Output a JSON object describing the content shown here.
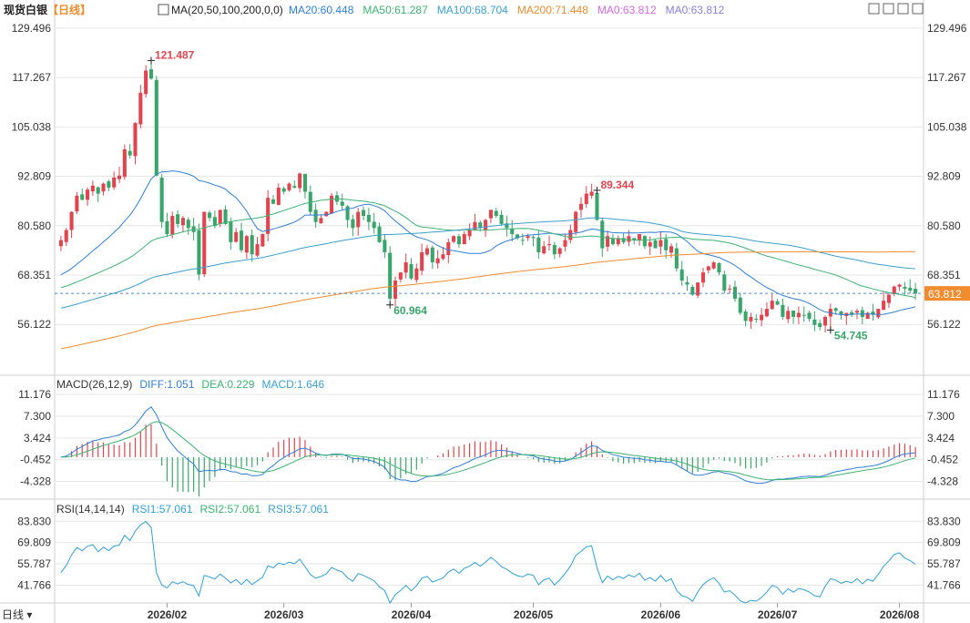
{
  "header": {
    "symbol": "现货白银",
    "period": "【日线】",
    "ma_label": "MA(20,50,100,200,0,0)",
    "ma_values": [
      {
        "text": "MA20:60.448",
        "color": "#2f7fd8"
      },
      {
        "text": "MA50:61.287",
        "color": "#3cb371"
      },
      {
        "text": "MA100:68.704",
        "color": "#3aa0d0"
      },
      {
        "text": "MA200:71.448",
        "color": "#f08c2e"
      },
      {
        "text": "MA0:63.812",
        "color": "#d06ae0"
      },
      {
        "text": "MA0:63.812",
        "color": "#8a7ee0"
      }
    ],
    "tool_icons": [
      "fullscreen-icon",
      "shrink-icon",
      "expand-icon",
      "close-icon"
    ]
  },
  "colors": {
    "up": "#e0454f",
    "down": "#3aa56b",
    "grid": "#e6e6e6",
    "axis_text": "#333333",
    "last_price_bg": "#f08c2e"
  },
  "chart_data": [
    {
      "type": "candlestick",
      "title": "现货白银",
      "y_ticks": [
        129.496,
        117.267,
        105.038,
        92.809,
        80.58,
        68.351,
        56.122
      ],
      "ylim": [
        44.0,
        131.5
      ],
      "x_ticks": [
        "2026/02",
        "2026/03",
        "2026/04",
        "2026/05",
        "2026/06",
        "2026/07",
        "2026/08"
      ],
      "last_price": 63.812,
      "annotations": [
        {
          "text": "121.487",
          "value": 121.487,
          "kind": "high"
        },
        {
          "text": "60.964",
          "value": 60.964,
          "kind": "low"
        },
        {
          "text": "89.344",
          "value": 89.344,
          "kind": "high"
        },
        {
          "text": "54.745",
          "value": 54.745,
          "kind": "low"
        }
      ],
      "candles_close": [
        77.0,
        79.5,
        84.0,
        88.0,
        87.0,
        89.5,
        90.5,
        88.5,
        91.0,
        90.0,
        92.5,
        93.0,
        99.5,
        98.0,
        106.0,
        113.5,
        119.0,
        117.0,
        93.0,
        81.5,
        78.5,
        83.0,
        81.0,
        82.5,
        80.0,
        79.0,
        68.5,
        84.0,
        82.5,
        80.5,
        84.5,
        81.0,
        76.5,
        79.0,
        74.5,
        78.0,
        73.5,
        76.0,
        78.5,
        87.5,
        86.0,
        90.0,
        89.0,
        91.0,
        90.0,
        93.5,
        89.0,
        84.0,
        81.5,
        82.5,
        84.0,
        88.0,
        86.5,
        85.5,
        82.0,
        80.0,
        84.0,
        83.0,
        81.5,
        80.0,
        76.5,
        74.0,
        62.5,
        67.0,
        69.0,
        71.5,
        67.5,
        70.0,
        74.0,
        75.0,
        71.5,
        72.5,
        73.5,
        76.5,
        78.0,
        76.0,
        78.5,
        79.5,
        81.5,
        80.0,
        82.0,
        84.5,
        83.0,
        81.0,
        80.0,
        78.5,
        77.5,
        77.0,
        78.0,
        77.5,
        74.0,
        75.5,
        76.0,
        73.5,
        75.0,
        77.0,
        79.5,
        84.0,
        86.0,
        88.5,
        89.0,
        82.0,
        75.0,
        78.0,
        76.0,
        77.5,
        76.5,
        78.0,
        77.0,
        78.5,
        75.5,
        76.5,
        75.0,
        77.0,
        74.5,
        75.5,
        70.0,
        67.0,
        66.0,
        63.5,
        66.5,
        69.0,
        70.5,
        71.5,
        69.0,
        64.5,
        65.0,
        62.5,
        59.0,
        57.0,
        58.0,
        57.5,
        58.5,
        60.0,
        62.0,
        61.0,
        58.0,
        59.5,
        58.0,
        59.0,
        58.5,
        57.5,
        56.0,
        55.5,
        58.0,
        60.0,
        59.5,
        58.5,
        59.0,
        58.5,
        59.5,
        58.0,
        59.0,
        58.5,
        60.0,
        62.0,
        63.5,
        65.5,
        66.0,
        65.0,
        64.5,
        63.8
      ],
      "ma_series_names": [
        "MA20",
        "MA50",
        "MA100",
        "MA200"
      ]
    },
    {
      "type": "line",
      "title": "MACD(26,12,9)",
      "legend": [
        {
          "text": "MACD(26,12,9)",
          "color": "#333333"
        },
        {
          "text": "DIFF:1.051",
          "color": "#2f7fd8"
        },
        {
          "text": "DEA:0.229",
          "color": "#3cb371"
        },
        {
          "text": "MACD:1.646",
          "color": "#3aa0d0"
        }
      ],
      "y_ticks": [
        11.176,
        7.3,
        3.424,
        -0.452,
        -4.328
      ],
      "ylim": [
        -7.0,
        12.5
      ]
    },
    {
      "type": "line",
      "title": "RSI(14,14,14)",
      "legend": [
        {
          "text": "RSI(14,14,14)",
          "color": "#333333"
        },
        {
          "text": "RSI1:57.061",
          "color": "#2f9fd8"
        },
        {
          "text": "RSI2:57.061",
          "color": "#3cb371"
        },
        {
          "text": "RSI3:57.061",
          "color": "#3aa0d0"
        }
      ],
      "y_ticks": [
        83.83,
        69.809,
        55.787,
        41.766
      ],
      "ylim": [
        30.0,
        90.0
      ]
    }
  ],
  "footer": {
    "period_button": "日线"
  }
}
